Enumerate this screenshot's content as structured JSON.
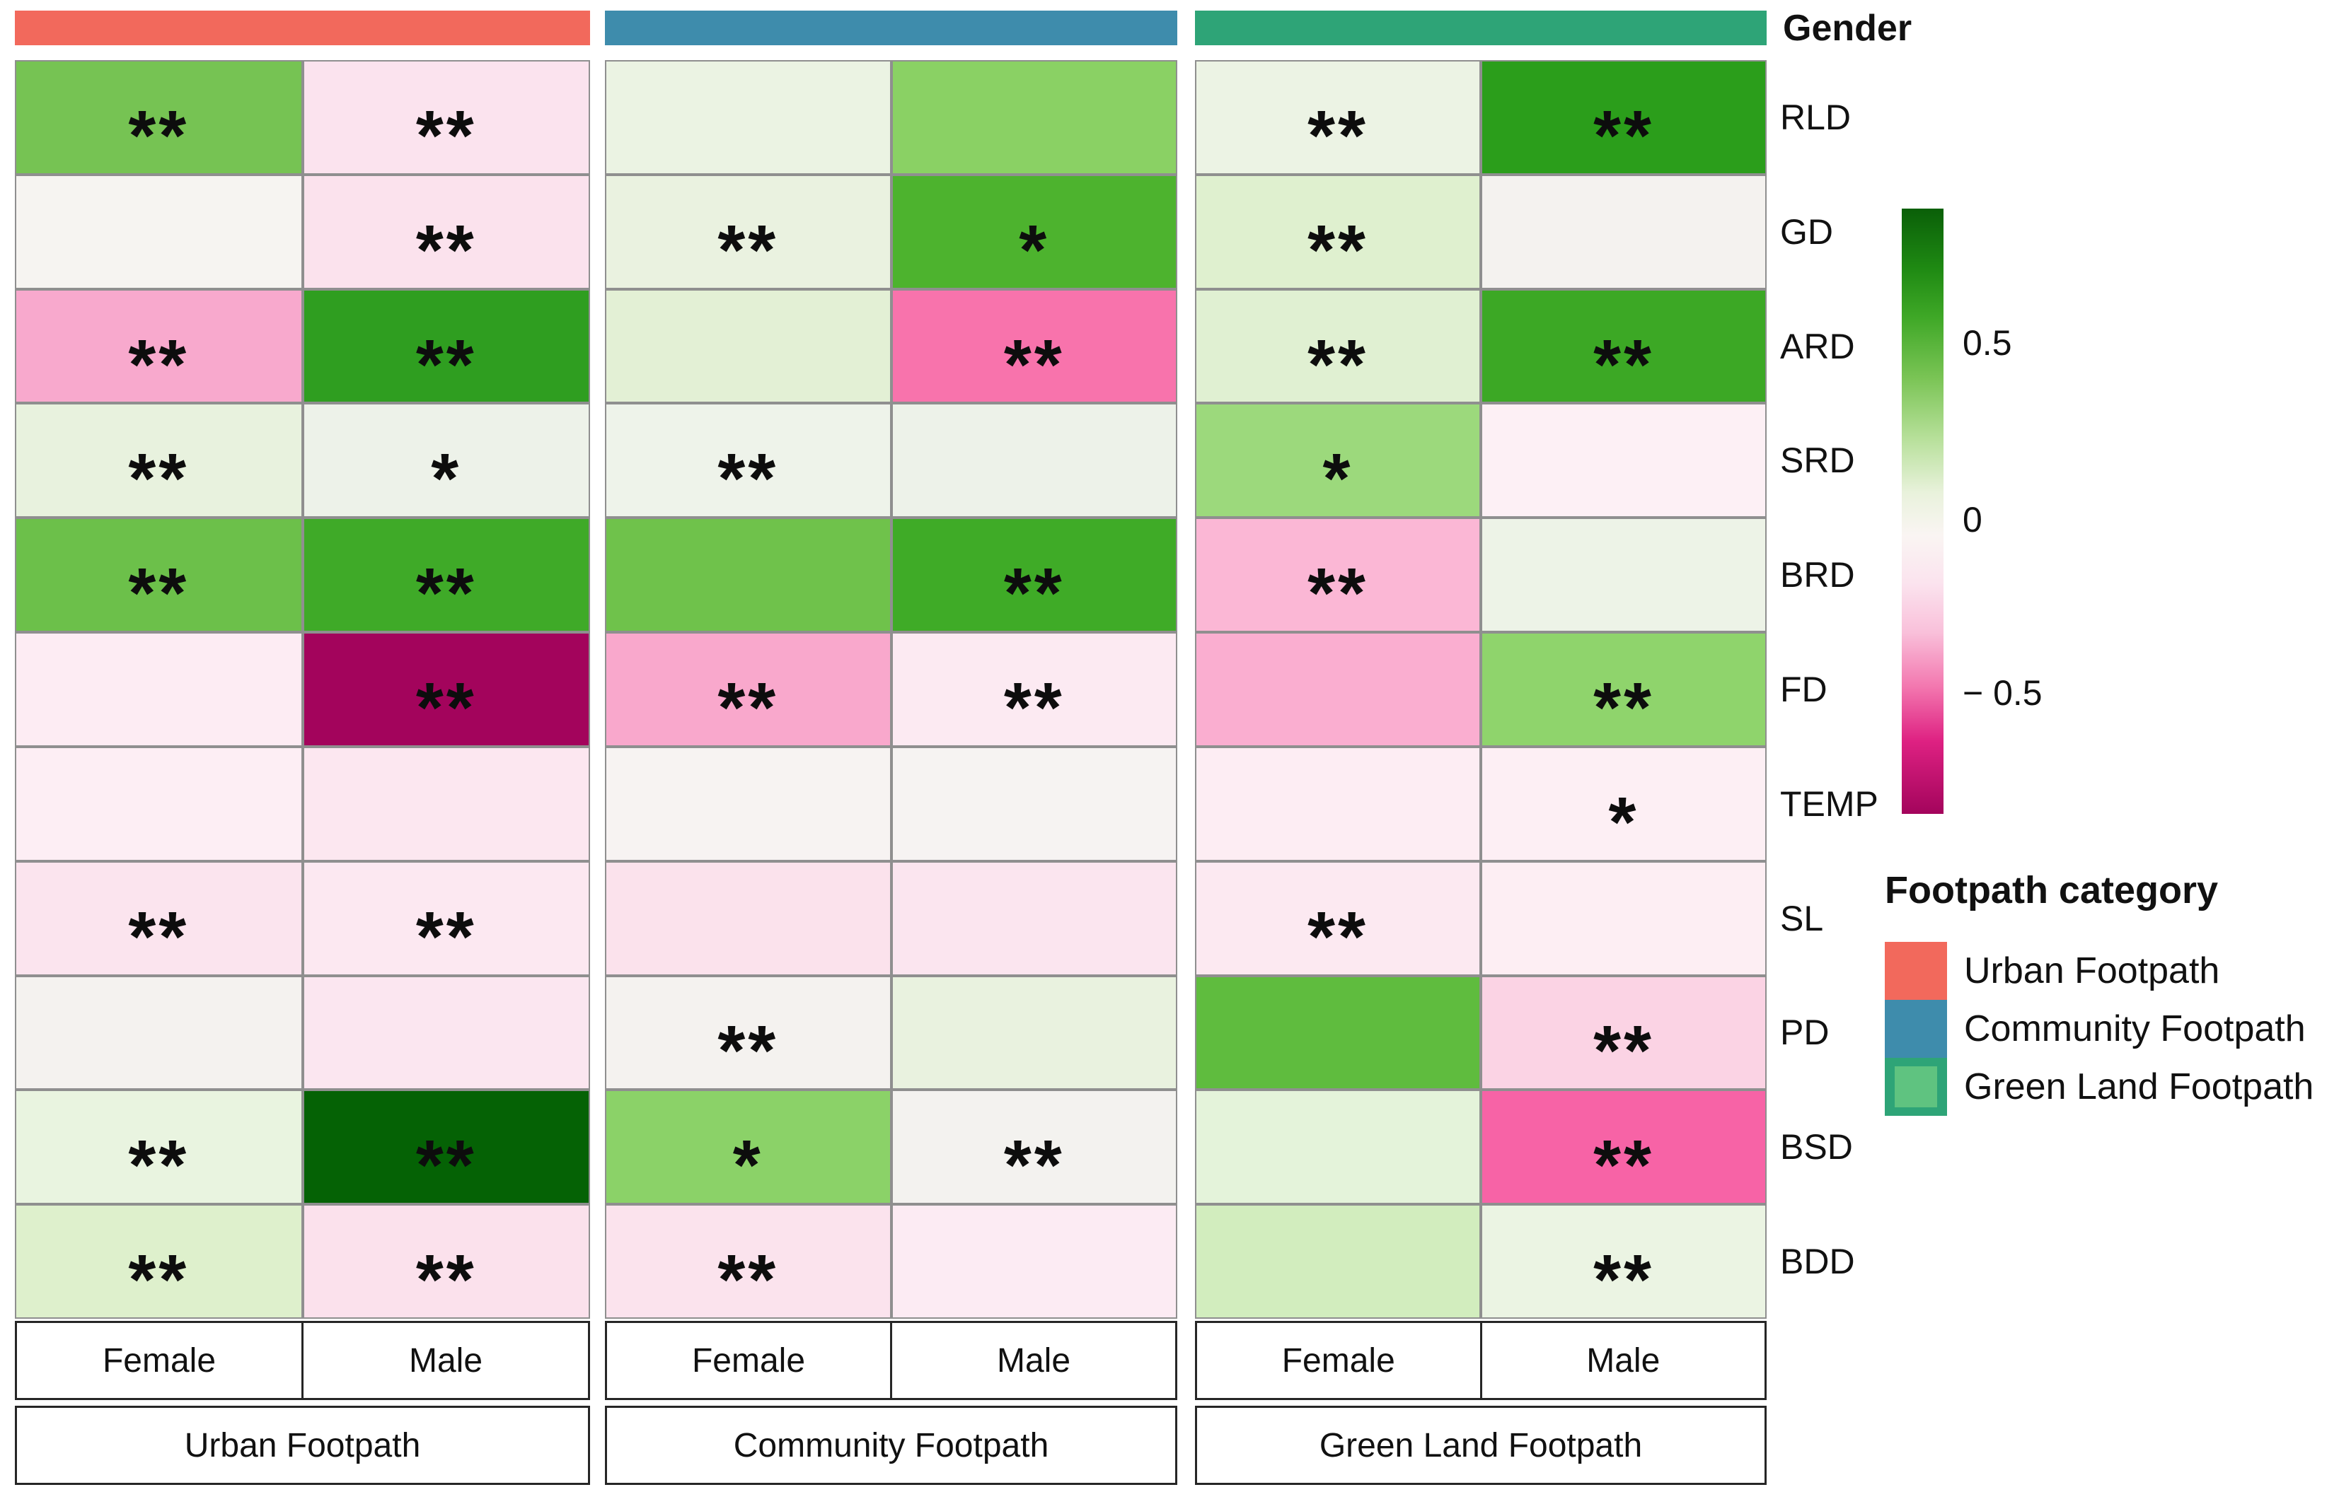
{
  "gender_band_label": "Gender",
  "colorbar": {
    "tick_labels": [
      "0.5",
      "0",
      "− 0.5"
    ],
    "gradient": [
      [
        "0%",
        "#0A5F08"
      ],
      [
        "10%",
        "#1F8A13"
      ],
      [
        "18%",
        "#3FA827"
      ],
      [
        "28%",
        "#7AC455"
      ],
      [
        "38%",
        "#B7E09A"
      ],
      [
        "47%",
        "#E9F2DC"
      ],
      [
        "54%",
        "#FAF5F3"
      ],
      [
        "62%",
        "#FBE3EE"
      ],
      [
        "70%",
        "#F9C0DA"
      ],
      [
        "79%",
        "#F377AF"
      ],
      [
        "88%",
        "#DE2182"
      ],
      [
        "100%",
        "#A3045C"
      ]
    ],
    "value_max": 0.9,
    "value_min": -0.79
  },
  "footpath_legend": {
    "title": "Footpath category",
    "items": [
      {
        "label": "Urban Footpath",
        "color": "#F2695C"
      },
      {
        "label": "Community Footpath",
        "color": "#3E8CAC"
      },
      {
        "label": "Green Land Footpath",
        "color": "#2EA477",
        "inner_color": "#5FC380"
      }
    ]
  },
  "chart_data": {
    "type": "heatmap",
    "rows": [
      "RLD",
      "GD",
      "ARD",
      "SRD",
      "BRD",
      "FD",
      "TEMP",
      "SL",
      "PD",
      "BSD",
      "BDD"
    ],
    "columns": [
      "Female",
      "Male"
    ],
    "legend_position": "right",
    "value_scale": {
      "ticks": [
        0.5,
        0,
        -0.5
      ],
      "max": 0.9,
      "min": -0.79
    },
    "panels": [
      {
        "label": "Urban Footpath",
        "band_color": "#F2695C",
        "female": [
          {
            "value": 0.45,
            "sig": "**",
            "color": "#76C353"
          },
          {
            "value": 0.01,
            "sig": "",
            "color": "#F6F4F1"
          },
          {
            "value": -0.35,
            "sig": "**",
            "color": "#F8A9CD"
          },
          {
            "value": 0.12,
            "sig": "**",
            "color": "#E8F2DE"
          },
          {
            "value": 0.5,
            "sig": "**",
            "color": "#6CC04A"
          },
          {
            "value": -0.06,
            "sig": "",
            "color": "#FDECF3"
          },
          {
            "value": -0.05,
            "sig": "",
            "color": "#FDEEF4"
          },
          {
            "value": -0.08,
            "sig": "**",
            "color": "#FBE4EE"
          },
          {
            "value": 0.02,
            "sig": "",
            "color": "#F4F2EF"
          },
          {
            "value": 0.1,
            "sig": "**",
            "color": "#E9F4E0"
          },
          {
            "value": 0.16,
            "sig": "**",
            "color": "#DEF0CC"
          }
        ],
        "male": [
          {
            "value": -0.08,
            "sig": "**",
            "color": "#FBE3EE"
          },
          {
            "value": -0.08,
            "sig": "**",
            "color": "#FBE2ED"
          },
          {
            "value": 0.66,
            "sig": "**",
            "color": "#2F9E20"
          },
          {
            "value": 0.05,
            "sig": "*",
            "color": "#EDF2E9"
          },
          {
            "value": 0.6,
            "sig": "**",
            "color": "#3FAA28"
          },
          {
            "value": -0.75,
            "sig": "**",
            "color": "#A3045C"
          },
          {
            "value": -0.07,
            "sig": "",
            "color": "#FCE7F0"
          },
          {
            "value": -0.07,
            "sig": "**",
            "color": "#FCE8F1"
          },
          {
            "value": -0.07,
            "sig": "",
            "color": "#FBE6F0"
          },
          {
            "value": 0.9,
            "sig": "**",
            "color": "#056205"
          },
          {
            "value": -0.09,
            "sig": "**",
            "color": "#FBE1EC"
          }
        ]
      },
      {
        "label": "Community Footpath",
        "band_color": "#3E8CAC",
        "female": [
          {
            "value": 0.07,
            "sig": "",
            "color": "#EBF3E3"
          },
          {
            "value": 0.09,
            "sig": "**",
            "color": "#EAF2E0"
          },
          {
            "value": 0.12,
            "sig": "",
            "color": "#E3F0D5"
          },
          {
            "value": 0.05,
            "sig": "**",
            "color": "#EEF3EA"
          },
          {
            "value": 0.48,
            "sig": "",
            "color": "#6FC24B"
          },
          {
            "value": -0.35,
            "sig": "**",
            "color": "#F9A8CC"
          },
          {
            "value": 0.0,
            "sig": "",
            "color": "#F7F3F2"
          },
          {
            "value": -0.08,
            "sig": "",
            "color": "#FBE2EC"
          },
          {
            "value": 0.02,
            "sig": "**",
            "color": "#F4F2EF"
          },
          {
            "value": 0.38,
            "sig": "*",
            "color": "#8BD268"
          },
          {
            "value": -0.08,
            "sig": "**",
            "color": "#FBE3ED"
          }
        ],
        "male": [
          {
            "value": 0.38,
            "sig": "",
            "color": "#8AD164"
          },
          {
            "value": 0.55,
            "sig": "*",
            "color": "#4DB32E"
          },
          {
            "value": -0.55,
            "sig": "**",
            "color": "#F873AC"
          },
          {
            "value": 0.05,
            "sig": "",
            "color": "#EDF2E9"
          },
          {
            "value": 0.6,
            "sig": "**",
            "color": "#3FAB27"
          },
          {
            "value": -0.06,
            "sig": "**",
            "color": "#FCEAF2"
          },
          {
            "value": 0.0,
            "sig": "",
            "color": "#F6F3F2"
          },
          {
            "value": -0.06,
            "sig": "",
            "color": "#FBE5EF"
          },
          {
            "value": 0.09,
            "sig": "",
            "color": "#E9F2DF"
          },
          {
            "value": 0.01,
            "sig": "**",
            "color": "#F3F2EF"
          },
          {
            "value": -0.05,
            "sig": "",
            "color": "#FCEBF3"
          }
        ]
      },
      {
        "label": "Green Land Footpath",
        "band_color": "#2EA477",
        "female": [
          {
            "value": 0.07,
            "sig": "**",
            "color": "#ECF3E4"
          },
          {
            "value": 0.14,
            "sig": "**",
            "color": "#DFF0CF"
          },
          {
            "value": 0.13,
            "sig": "**",
            "color": "#E0F0D2"
          },
          {
            "value": 0.32,
            "sig": "*",
            "color": "#9CD97C"
          },
          {
            "value": -0.28,
            "sig": "**",
            "color": "#FBB7D5"
          },
          {
            "value": -0.33,
            "sig": "",
            "color": "#FAAED0"
          },
          {
            "value": -0.05,
            "sig": "",
            "color": "#FDEDF3"
          },
          {
            "value": -0.07,
            "sig": "**",
            "color": "#FCE9F1"
          },
          {
            "value": 0.55,
            "sig": "",
            "color": "#5FBC3E"
          },
          {
            "value": 0.1,
            "sig": "",
            "color": "#E4F3DA"
          },
          {
            "value": 0.2,
            "sig": "",
            "color": "#D2EDBE"
          }
        ],
        "male": [
          {
            "value": 0.67,
            "sig": "**",
            "color": "#2B9E1B"
          },
          {
            "value": 0.02,
            "sig": "",
            "color": "#F4F2EF"
          },
          {
            "value": 0.62,
            "sig": "**",
            "color": "#3CA825"
          },
          {
            "value": -0.03,
            "sig": "",
            "color": "#FDF0F5"
          },
          {
            "value": 0.06,
            "sig": "",
            "color": "#EDF3E7"
          },
          {
            "value": 0.36,
            "sig": "**",
            "color": "#8FD46C"
          },
          {
            "value": -0.04,
            "sig": "*",
            "color": "#FDEFF4"
          },
          {
            "value": -0.05,
            "sig": "",
            "color": "#FDEEF3"
          },
          {
            "value": -0.18,
            "sig": "**",
            "color": "#FBD3E4"
          },
          {
            "value": -0.56,
            "sig": "**",
            "color": "#F763A6"
          },
          {
            "value": 0.08,
            "sig": "**",
            "color": "#EBF4E3"
          }
        ]
      }
    ]
  }
}
